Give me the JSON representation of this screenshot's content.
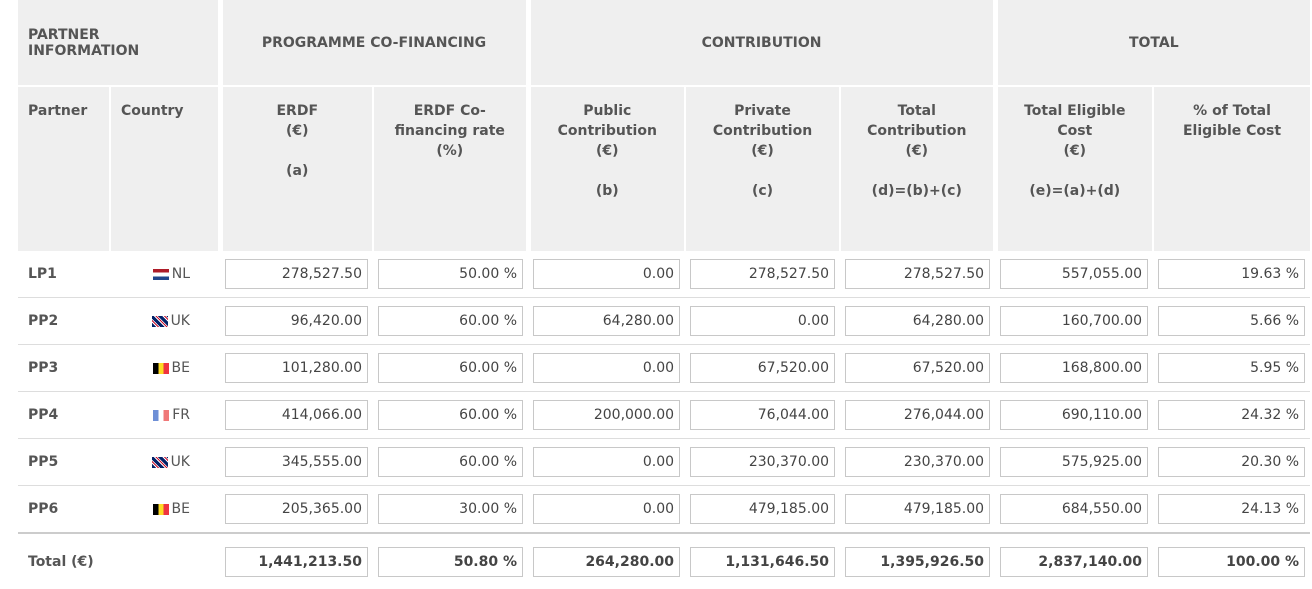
{
  "groups": [
    "PARTNER INFORMATION",
    "PROGRAMME CO-FINANCING",
    "CONTRIBUTION",
    "TOTAL"
  ],
  "columns": [
    {
      "name": "Partner"
    },
    {
      "name": "Country"
    },
    {
      "name": "ERDF",
      "unit": "(€)",
      "ref": "(a)"
    },
    {
      "name": "ERDF Co-financing rate",
      "unit": "(%)"
    },
    {
      "name": "Public Contribution",
      "unit": "(€)",
      "ref": "(b)"
    },
    {
      "name": "Private Contribution",
      "unit": "(€)",
      "ref": "(c)"
    },
    {
      "name": "Total Contribution",
      "unit": "(€)",
      "ref": "(d)=(b)+(c)"
    },
    {
      "name": "Total Eligible Cost",
      "unit": "(€)",
      "ref": "(e)=(a)+(d)"
    },
    {
      "name": "% of Total Eligible Cost"
    }
  ],
  "rows": [
    {
      "partner": "LP1",
      "country": "NL",
      "values": [
        "278,527.50",
        "50.00 %",
        "0.00",
        "278,527.50",
        "278,527.50",
        "557,055.00",
        "19.63 %"
      ]
    },
    {
      "partner": "PP2",
      "country": "UK",
      "values": [
        "96,420.00",
        "60.00 %",
        "64,280.00",
        "0.00",
        "64,280.00",
        "160,700.00",
        "5.66 %"
      ]
    },
    {
      "partner": "PP3",
      "country": "BE",
      "values": [
        "101,280.00",
        "60.00 %",
        "0.00",
        "67,520.00",
        "67,520.00",
        "168,800.00",
        "5.95 %"
      ]
    },
    {
      "partner": "PP4",
      "country": "FR",
      "values": [
        "414,066.00",
        "60.00 %",
        "200,000.00",
        "76,044.00",
        "276,044.00",
        "690,110.00",
        "24.32 %"
      ]
    },
    {
      "partner": "PP5",
      "country": "UK",
      "values": [
        "345,555.00",
        "60.00 %",
        "0.00",
        "230,370.00",
        "230,370.00",
        "575,925.00",
        "20.30 %"
      ]
    },
    {
      "partner": "PP6",
      "country": "BE",
      "values": [
        "205,365.00",
        "30.00 %",
        "0.00",
        "479,185.00",
        "479,185.00",
        "684,550.00",
        "24.13 %"
      ]
    }
  ],
  "total": {
    "label": "Total (€)",
    "values": [
      "1,441,213.50",
      "50.80 %",
      "264,280.00",
      "1,131,646.50",
      "1,395,926.50",
      "2,837,140.00",
      "100.00 %"
    ]
  }
}
